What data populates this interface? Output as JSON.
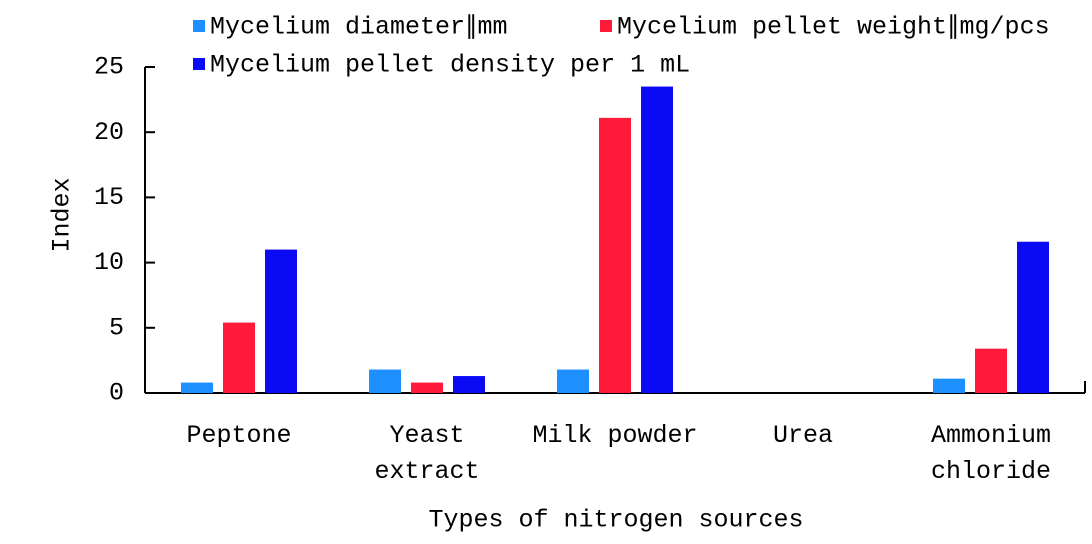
{
  "chart_data": {
    "type": "bar",
    "categories": [
      "Peptone",
      "Yeast\nextract",
      "Milk powder",
      "Urea",
      "Ammonium\nchloride"
    ],
    "series": [
      {
        "name": "Mycelium diameter∥mm",
        "color": "#1e8fff",
        "values": [
          0.8,
          1.8,
          1.8,
          0,
          1.1
        ]
      },
      {
        "name": "Mycelium pellet weight∥mg/pcs",
        "color": "#ff1a3a",
        "values": [
          5.4,
          0.8,
          21.1,
          0,
          3.4
        ]
      },
      {
        "name": "Mycelium pellet density per 1 mL",
        "color": "#0a0af5",
        "values": [
          11,
          1.3,
          23.5,
          0,
          11.6
        ]
      }
    ],
    "xlabel": "Types of nitrogen sources",
    "ylabel": "Index",
    "ylim": [
      0,
      25
    ],
    "yticks": [
      0,
      5,
      10,
      15,
      20,
      25
    ],
    "legend": "top"
  }
}
